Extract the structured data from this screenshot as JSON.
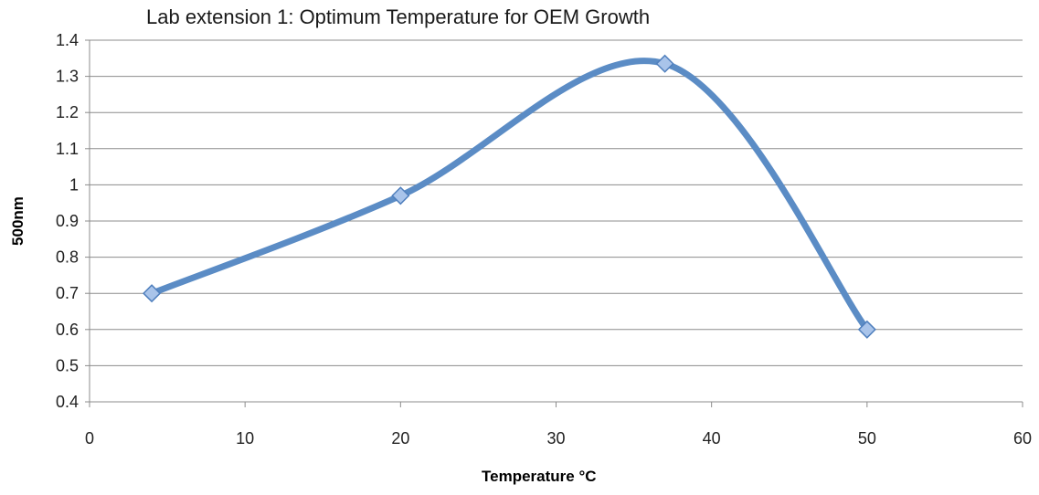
{
  "chart_data": {
    "type": "line",
    "title": "Lab extension 1: Optimum Temperature for OEM Growth",
    "xlabel": "Temperature °C",
    "ylabel": "500nm",
    "xlim": [
      0,
      60
    ],
    "ylim": [
      0.4,
      1.4
    ],
    "x_ticks": [
      "0",
      "10",
      "20",
      "30",
      "40",
      "50",
      "60"
    ],
    "y_ticks": [
      "0.4",
      "0.5",
      "0.6",
      "0.7",
      "0.8",
      "0.9",
      "1",
      "1.1",
      "1.2",
      "1.3",
      "1.4"
    ],
    "grid": "horizontal",
    "legend": "none",
    "smoothed": true,
    "marker": "diamond",
    "series": [
      {
        "x": [
          4,
          20,
          37,
          50
        ],
        "y": [
          0.7,
          0.97,
          1.335,
          0.6
        ],
        "color": "#5b8cc5"
      }
    ]
  }
}
